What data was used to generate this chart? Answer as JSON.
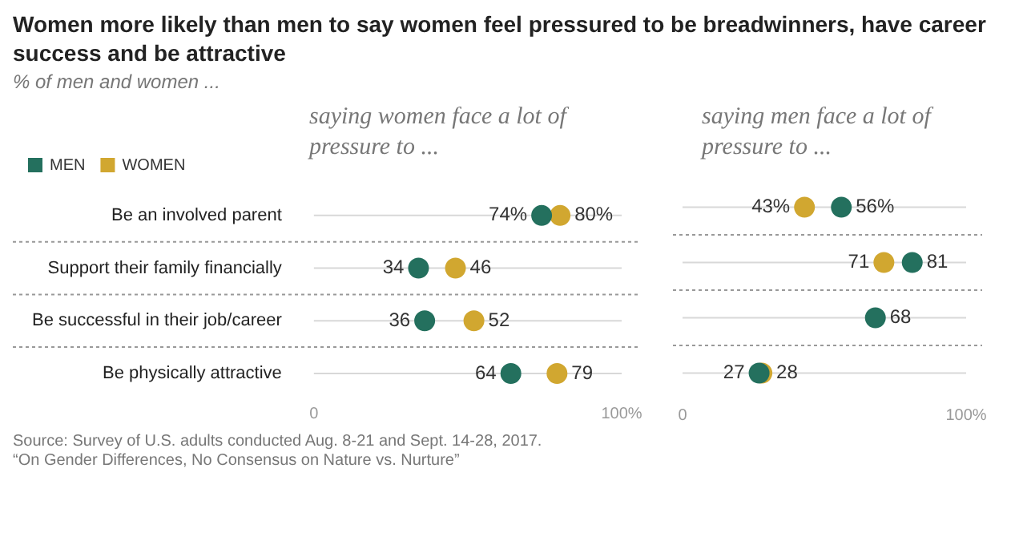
{
  "chart_data": [
    {
      "type": "scatter",
      "orientation": "horizontal",
      "title": "Women more likely than men to say women feel pressured to be breadwinners, have career success and be attractive",
      "subtitle": "% of men and women ...",
      "annotations": [
        "Source: Survey of U.S. adults conducted Aug. 8-21 and Sept. 14-28, 2017.",
        "“On Gender Differences, No Consensus on Nature vs. Nurture”"
      ],
      "legend_title": "saying women face a lot of pressure to ...",
      "categories": [
        "Be an involved parent",
        "Support their family financially",
        "Be successful in their job/career",
        "Be physically attractive"
      ],
      "series": [
        {
          "name": "MEN",
          "color": "#24705e",
          "values": [
            74,
            34,
            36,
            64
          ],
          "value_labels": [
            "74%",
            "34",
            "36",
            "64"
          ]
        },
        {
          "name": "WOMEN",
          "color": "#d1a730",
          "values": [
            80,
            46,
            52,
            79
          ],
          "value_labels": [
            "80%",
            "46",
            "52",
            "79"
          ]
        }
      ],
      "xlim": [
        0,
        100
      ],
      "xticks": [
        0,
        {
          "value": 100,
          "label": "100%"
        }
      ],
      "grid": "y",
      "legend": "top left",
      "marker": "circle"
    },
    {
      "type": "scatter",
      "orientation": "horizontal",
      "legend_title": "saying men face a lot of pressure to ...",
      "categories": [
        null,
        null,
        null,
        null
      ],
      "series": [
        {
          "color": "#24705e",
          "values": [
            56,
            81,
            68,
            27
          ],
          "value_labels": [
            "56%",
            "81",
            "68",
            "27"
          ]
        },
        {
          "color": "#d1a730",
          "values": [
            43,
            71,
            null,
            28
          ],
          "value_labels": [
            "43%",
            "71",
            null,
            "28"
          ]
        }
      ],
      "xlim": [
        0,
        100
      ],
      "xticks": [
        0,
        {
          "value": 100,
          "label": "100%"
        }
      ],
      "grid": "y",
      "legend": false,
      "marker": "circle",
      "tick_labels": "x"
    }
  ]
}
